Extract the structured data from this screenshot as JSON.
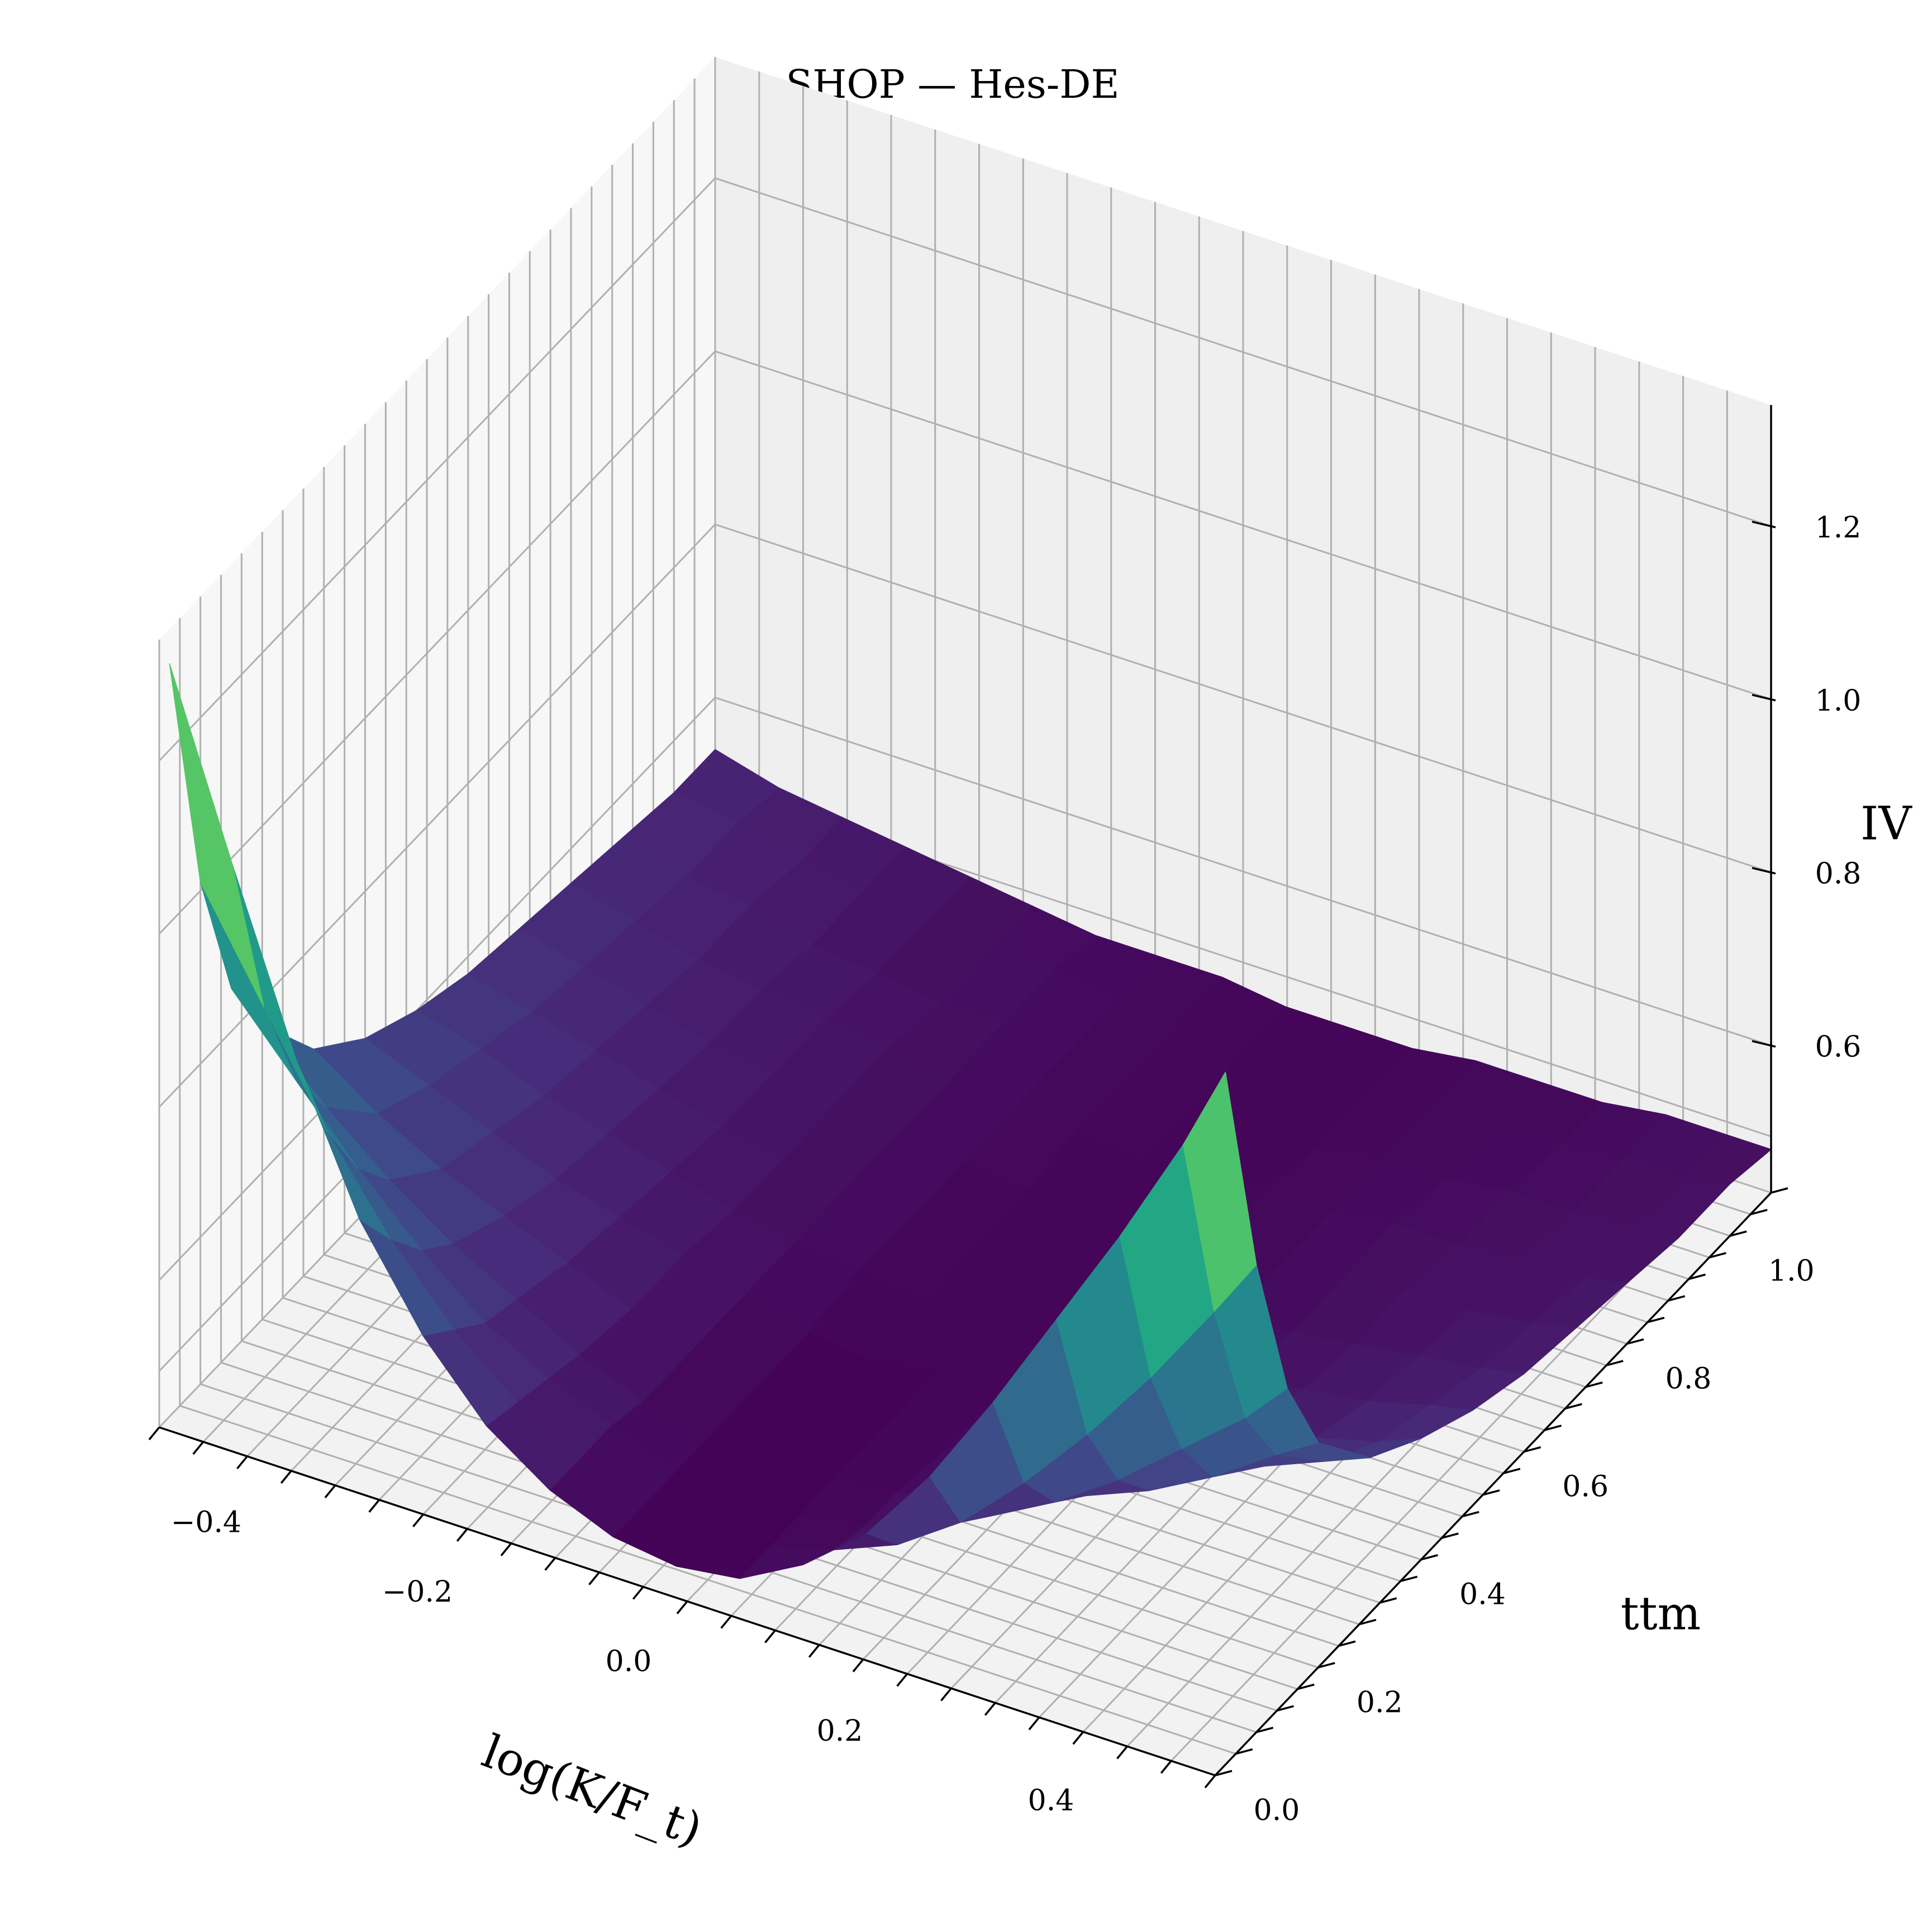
{
  "chart_data": {
    "type": "surface",
    "title": "SHOP — Hes-DE",
    "xlabel": "log(K/F_t)",
    "ylabel": "ttm",
    "zlabel": "IV",
    "xlim": [
      -0.5,
      0.5
    ],
    "ylim": [
      0.0,
      1.08
    ],
    "zlim": [
      0.43,
      1.34
    ],
    "xticks": [
      -0.4,
      -0.2,
      0.0,
      0.2,
      0.4
    ],
    "xtick_labels": [
      "−0.4",
      "−0.2",
      "0.0",
      "0.2",
      "0.4"
    ],
    "yticks": [
      0.0,
      0.2,
      0.4,
      0.6,
      0.8,
      1.0
    ],
    "ytick_labels": [
      "0.0",
      "0.2",
      "0.4",
      "0.6",
      "0.8",
      "1.0"
    ],
    "zticks": [
      0.6,
      0.8,
      1.0,
      1.2
    ],
    "ztick_labels": [
      "0.6",
      "0.8",
      "1.0",
      "1.2"
    ],
    "colormap": "viridis",
    "grid": true,
    "surface": {
      "log_moneyness": [
        -0.5,
        -0.44,
        -0.38,
        -0.32,
        -0.26,
        -0.2,
        -0.14,
        -0.08,
        -0.02,
        0.04,
        0.1,
        0.16,
        0.22,
        0.28,
        0.34,
        0.4,
        0.46,
        0.5
      ],
      "ttm": [
        0.02,
        0.08,
        0.14,
        0.2,
        0.3,
        0.4,
        0.5,
        0.6,
        0.7,
        0.8,
        0.9,
        1.0,
        1.08
      ],
      "iv": [
        [
          1.3,
          1.09,
          0.89,
          0.73,
          0.62,
          0.54,
          0.49,
          0.46,
          0.45,
          0.46,
          0.5,
          0.56,
          0.65,
          0.76,
          0.88,
          1.0,
          1.13,
          1.23
        ],
        [
          1.01,
          0.89,
          0.77,
          0.67,
          0.59,
          0.53,
          0.49,
          0.46,
          0.45,
          0.46,
          0.48,
          0.51,
          0.56,
          0.63,
          0.71,
          0.8,
          0.9,
          0.97
        ],
        [
          0.85,
          0.77,
          0.69,
          0.62,
          0.56,
          0.52,
          0.49,
          0.46,
          0.45,
          0.46,
          0.47,
          0.5,
          0.53,
          0.57,
          0.62,
          0.68,
          0.74,
          0.79
        ],
        [
          0.77,
          0.7,
          0.64,
          0.59,
          0.55,
          0.51,
          0.48,
          0.46,
          0.45,
          0.46,
          0.47,
          0.49,
          0.51,
          0.54,
          0.57,
          0.61,
          0.66,
          0.69
        ],
        [
          0.68,
          0.63,
          0.59,
          0.56,
          0.53,
          0.5,
          0.48,
          0.46,
          0.45,
          0.46,
          0.46,
          0.48,
          0.49,
          0.51,
          0.53,
          0.56,
          0.59,
          0.61
        ],
        [
          0.63,
          0.6,
          0.57,
          0.54,
          0.52,
          0.5,
          0.48,
          0.46,
          0.45,
          0.46,
          0.46,
          0.47,
          0.48,
          0.5,
          0.51,
          0.53,
          0.55,
          0.57
        ],
        [
          0.6,
          0.58,
          0.55,
          0.53,
          0.51,
          0.49,
          0.48,
          0.47,
          0.46,
          0.46,
          0.46,
          0.47,
          0.48,
          0.49,
          0.5,
          0.51,
          0.53,
          0.54
        ],
        [
          0.58,
          0.56,
          0.54,
          0.52,
          0.5,
          0.49,
          0.48,
          0.47,
          0.46,
          0.46,
          0.46,
          0.47,
          0.47,
          0.48,
          0.49,
          0.5,
          0.51,
          0.52
        ],
        [
          0.57,
          0.55,
          0.53,
          0.51,
          0.5,
          0.49,
          0.48,
          0.47,
          0.46,
          0.46,
          0.46,
          0.47,
          0.47,
          0.48,
          0.49,
          0.49,
          0.5,
          0.51
        ],
        [
          0.56,
          0.54,
          0.52,
          0.51,
          0.5,
          0.49,
          0.48,
          0.47,
          0.47,
          0.46,
          0.46,
          0.47,
          0.47,
          0.48,
          0.48,
          0.49,
          0.49,
          0.5
        ],
        [
          0.55,
          0.53,
          0.52,
          0.5,
          0.49,
          0.48,
          0.48,
          0.47,
          0.47,
          0.46,
          0.46,
          0.46,
          0.47,
          0.47,
          0.48,
          0.48,
          0.49,
          0.49
        ],
        [
          0.54,
          0.53,
          0.51,
          0.5,
          0.49,
          0.48,
          0.48,
          0.47,
          0.47,
          0.46,
          0.46,
          0.46,
          0.47,
          0.47,
          0.47,
          0.48,
          0.48,
          0.49
        ],
        [
          0.54,
          0.52,
          0.51,
          0.5,
          0.49,
          0.48,
          0.47,
          0.47,
          0.47,
          0.46,
          0.46,
          0.46,
          0.47,
          0.47,
          0.47,
          0.48,
          0.48,
          0.48
        ]
      ]
    }
  }
}
